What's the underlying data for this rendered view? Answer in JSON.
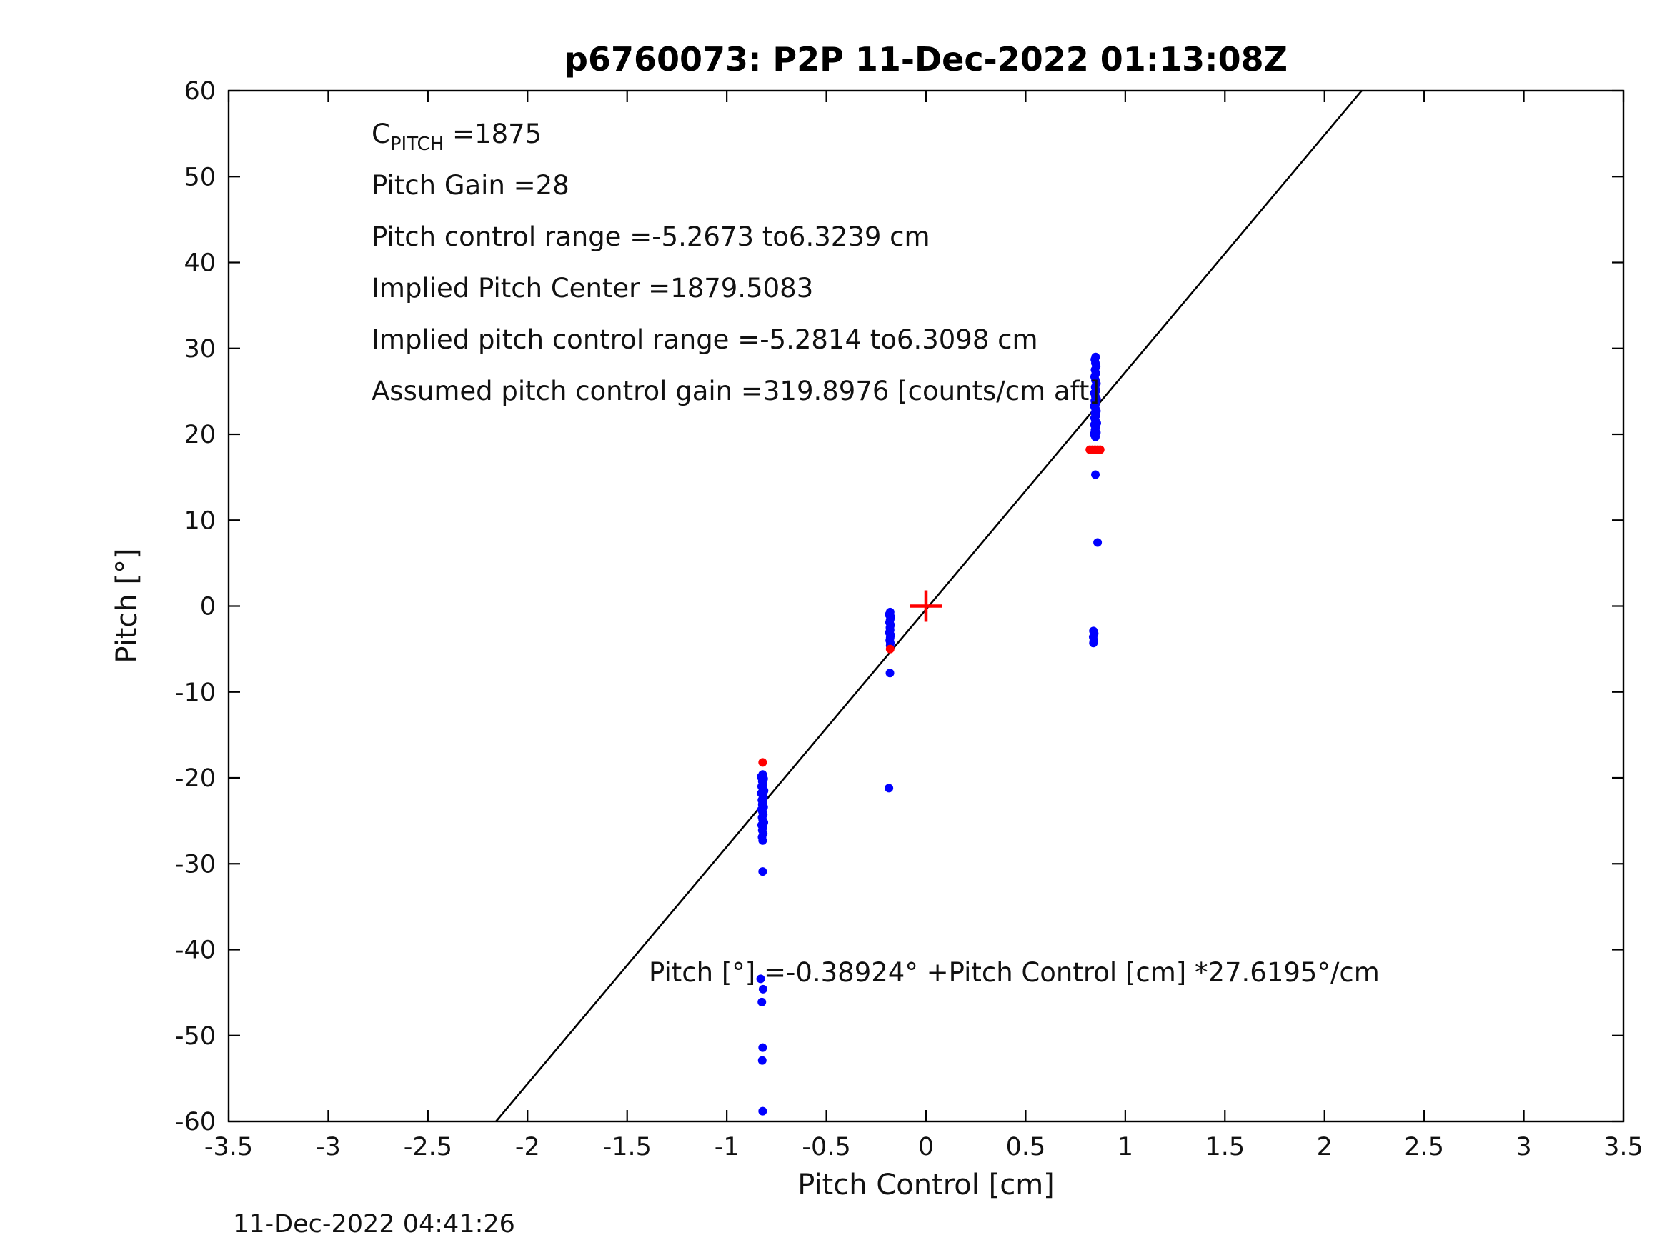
{
  "footer": {
    "timestamp": "11-Dec-2022 04:41:26"
  },
  "chart_data": {
    "type": "scatter",
    "title": "p6760073: P2P 11-Dec-2022 01:13:08Z",
    "xlabel": "Pitch Control [cm]",
    "ylabel": "Pitch [°]",
    "xlim": [
      -3.5,
      3.5
    ],
    "ylim": [
      -60,
      60
    ],
    "xticks": [
      -3.5,
      -3,
      -2.5,
      -2,
      -1.5,
      -1,
      -0.5,
      0,
      0.5,
      1,
      1.5,
      2,
      2.5,
      3,
      3.5
    ],
    "yticks": [
      -60,
      -50,
      -40,
      -30,
      -20,
      -10,
      0,
      10,
      20,
      30,
      40,
      50,
      60
    ],
    "grid": false,
    "legend": "none",
    "fit_line": {
      "slope": 27.6195,
      "intercept_deg": -0.38924,
      "color": "#000000"
    },
    "annotations": {
      "c_pitch": {
        "pre": "C",
        "sub": "PITCH",
        "post": " =1875"
      },
      "lines": [
        "Pitch Gain =28",
        "Pitch control range =-5.2673 to6.3239 cm",
        "Implied Pitch Center =1879.5083",
        "Implied pitch control range =-5.2814 to6.3098 cm",
        "Assumed pitch control gain =319.8976 [counts/cm aft]"
      ],
      "equation": "Pitch [°] =-0.38924° +Pitch Control [cm] *27.6195°/cm"
    },
    "series": [
      {
        "name": "pitch-samples",
        "color": "#0000ff",
        "marker": "dot",
        "points": [
          [
            -0.82,
            -19.6
          ],
          [
            -0.828,
            -19.9
          ],
          [
            -0.815,
            -20.1
          ],
          [
            -0.822,
            -20.4
          ],
          [
            -0.818,
            -20.7
          ],
          [
            -0.825,
            -21.0
          ],
          [
            -0.82,
            -21.2
          ],
          [
            -0.813,
            -21.5
          ],
          [
            -0.827,
            -21.8
          ],
          [
            -0.82,
            -22.0
          ],
          [
            -0.816,
            -22.3
          ],
          [
            -0.824,
            -22.6
          ],
          [
            -0.819,
            -22.9
          ],
          [
            -0.822,
            -23.1
          ],
          [
            -0.815,
            -23.4
          ],
          [
            -0.826,
            -23.7
          ],
          [
            -0.82,
            -24.0
          ],
          [
            -0.817,
            -24.3
          ],
          [
            -0.823,
            -24.6
          ],
          [
            -0.82,
            -24.9
          ],
          [
            -0.814,
            -25.2
          ],
          [
            -0.825,
            -25.5
          ],
          [
            -0.819,
            -25.8
          ],
          [
            -0.822,
            -26.1
          ],
          [
            -0.817,
            -26.5
          ],
          [
            -0.823,
            -26.9
          ],
          [
            -0.82,
            -27.3
          ],
          [
            -0.82,
            -30.9
          ],
          [
            -0.83,
            -43.4
          ],
          [
            -0.818,
            -44.6
          ],
          [
            -0.824,
            -46.1
          ],
          [
            -0.82,
            -51.4
          ],
          [
            -0.822,
            -52.9
          ],
          [
            -0.82,
            -58.8
          ],
          [
            -0.18,
            -0.7
          ],
          [
            -0.185,
            -1.0
          ],
          [
            -0.176,
            -1.3
          ],
          [
            -0.18,
            -1.6
          ],
          [
            -0.183,
            -1.9
          ],
          [
            -0.178,
            -2.2
          ],
          [
            -0.181,
            -2.5
          ],
          [
            -0.18,
            -2.8
          ],
          [
            -0.184,
            -3.1
          ],
          [
            -0.177,
            -3.4
          ],
          [
            -0.18,
            -3.7
          ],
          [
            -0.182,
            -4.0
          ],
          [
            -0.179,
            -4.3
          ],
          [
            -0.18,
            -4.6
          ],
          [
            -0.181,
            -7.8
          ],
          [
            -0.186,
            -21.2
          ],
          [
            0.85,
            19.7
          ],
          [
            0.843,
            20.0
          ],
          [
            0.855,
            20.2
          ],
          [
            0.848,
            20.5
          ],
          [
            0.852,
            20.8
          ],
          [
            0.845,
            21.1
          ],
          [
            0.857,
            21.3
          ],
          [
            0.85,
            21.6
          ],
          [
            0.846,
            21.9
          ],
          [
            0.853,
            22.2
          ],
          [
            0.848,
            22.5
          ],
          [
            0.855,
            22.7
          ],
          [
            0.85,
            23.0
          ],
          [
            0.844,
            23.3
          ],
          [
            0.852,
            23.6
          ],
          [
            0.847,
            23.9
          ],
          [
            0.856,
            24.1
          ],
          [
            0.85,
            24.4
          ],
          [
            0.845,
            24.8
          ],
          [
            0.853,
            25.1
          ],
          [
            0.849,
            25.5
          ],
          [
            0.855,
            25.9
          ],
          [
            0.85,
            26.3
          ],
          [
            0.846,
            26.7
          ],
          [
            0.852,
            27.1
          ],
          [
            0.848,
            27.5
          ],
          [
            0.854,
            27.9
          ],
          [
            0.85,
            28.3
          ],
          [
            0.847,
            28.7
          ],
          [
            0.851,
            29.0
          ],
          [
            0.85,
            15.3
          ],
          [
            0.861,
            7.4
          ],
          [
            0.84,
            -2.9
          ],
          [
            0.844,
            -3.2
          ],
          [
            0.839,
            -3.6
          ],
          [
            0.842,
            -4.0
          ],
          [
            0.84,
            -4.3
          ]
        ]
      },
      {
        "name": "flagged-samples",
        "color": "#ff0000",
        "marker": "dot",
        "points": [
          [
            -0.82,
            -18.2
          ],
          [
            -0.18,
            -5.0
          ],
          [
            0.822,
            18.2
          ],
          [
            0.835,
            18.2
          ],
          [
            0.848,
            18.2
          ],
          [
            0.861,
            18.2
          ],
          [
            0.874,
            18.2
          ]
        ]
      },
      {
        "name": "origin-marker",
        "color": "#ff0000",
        "marker": "plus",
        "points": [
          [
            0,
            0
          ]
        ]
      }
    ]
  }
}
